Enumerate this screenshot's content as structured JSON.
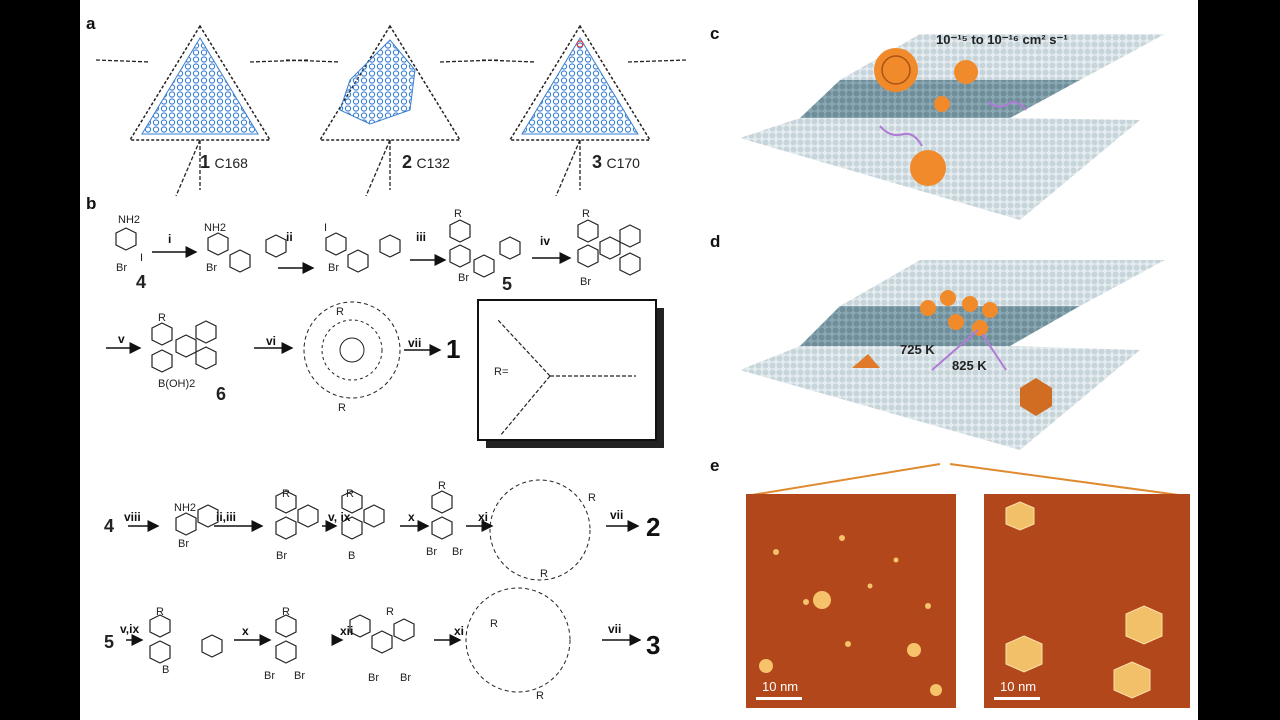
{
  "panels": {
    "a": "a",
    "b": "b",
    "c": "c",
    "d": "d",
    "e": "e"
  },
  "panel_a": {
    "items": [
      {
        "number": "1",
        "formula": "C168"
      },
      {
        "number": "2",
        "formula": "C132"
      },
      {
        "number": "3",
        "formula": "C170"
      }
    ]
  },
  "panel_b": {
    "compounds": {
      "c4": "4",
      "c5": "5",
      "c6": "6",
      "p1": "1",
      "p2": "2",
      "p3": "3"
    },
    "atoms": {
      "nh2": "NH2",
      "br": "Br",
      "i": "I",
      "r": "R",
      "boh2": "B(OH)2",
      "b": "B",
      "o": "O",
      "r_eq": "R="
    },
    "steps": {
      "i": "i",
      "ii": "ii",
      "iii": "iii",
      "iv": "iv",
      "v": "v",
      "vi": "vi",
      "vii": "vii",
      "viii": "viii",
      "ii_iii": "ii,iii",
      "v_ix": "v, ix",
      "x": "x",
      "xi": "xi",
      "v_ix2": "v,ix",
      "xii": "xii"
    }
  },
  "panel_c": {
    "diffusion": "10⁻¹⁵ to 10⁻¹⁶ cm² s⁻¹"
  },
  "panel_d": {
    "t1": "725 K",
    "t2": "825 K"
  },
  "panel_e": {
    "scale_left": "10 nm",
    "scale_right": "10 nm"
  },
  "colors": {
    "molecule_blue": "#3a7fd0",
    "fullerene_orange": "#f08a2a",
    "stm_bg": "#b3471c",
    "substrate": "#8aa8b3"
  }
}
